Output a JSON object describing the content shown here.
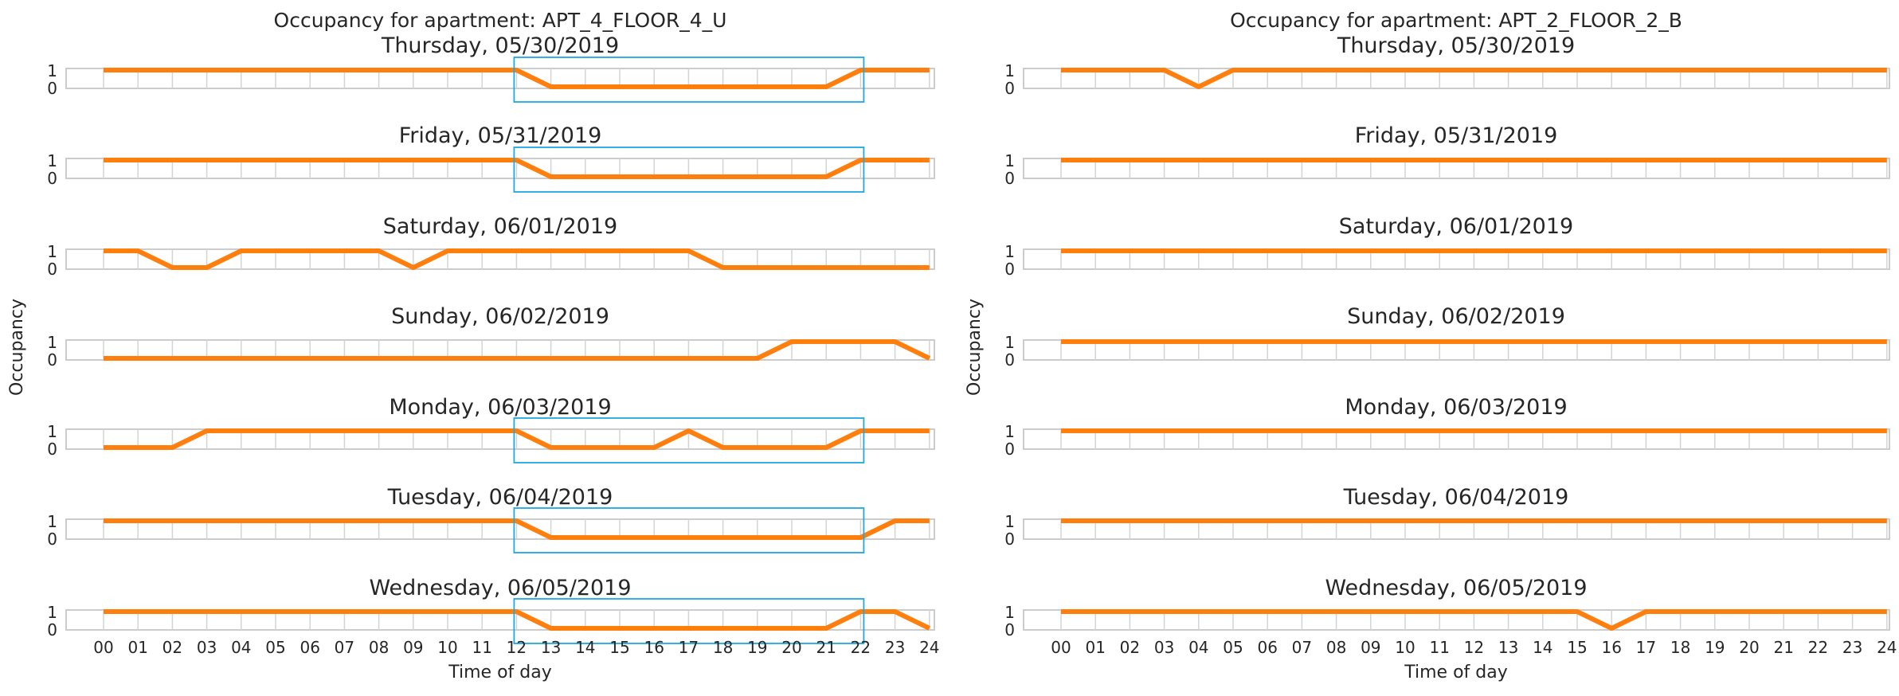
{
  "chart_data": [
    {
      "type": "line",
      "title": "Occupancy for apartment:   APT_4_FLOOR_4_U",
      "xlabel": "Time of day",
      "ylabel": "Occupancy",
      "x_ticks": [
        "00",
        "01",
        "02",
        "03",
        "04",
        "05",
        "06",
        "07",
        "08",
        "09",
        "10",
        "11",
        "12",
        "13",
        "14",
        "15",
        "16",
        "17",
        "18",
        "19",
        "20",
        "21",
        "22",
        "23",
        "24"
      ],
      "y_ticks": [
        "1",
        "0"
      ],
      "ylim": [
        0,
        1
      ],
      "xlim": [
        0,
        24
      ],
      "line_color": "#ff7f0e",
      "highlight_color": "#1fa8e0",
      "days": [
        {
          "label": "Thursday, 05/30/2019",
          "values": [
            1,
            1,
            1,
            1,
            1,
            1,
            1,
            1,
            1,
            1,
            1,
            1,
            1,
            0,
            0,
            0,
            0,
            0,
            0,
            0,
            0,
            0,
            1,
            1,
            1
          ],
          "highlight": [
            12,
            22
          ]
        },
        {
          "label": "Friday, 05/31/2019",
          "values": [
            1,
            1,
            1,
            1,
            1,
            1,
            1,
            1,
            1,
            1,
            1,
            1,
            1,
            0,
            0,
            0,
            0,
            0,
            0,
            0,
            0,
            0,
            1,
            1,
            1
          ],
          "highlight": [
            12,
            22
          ]
        },
        {
          "label": "Saturday, 06/01/2019",
          "values": [
            1,
            1,
            0,
            0,
            1,
            1,
            1,
            1,
            1,
            0,
            1,
            1,
            1,
            1,
            1,
            1,
            1,
            1,
            0,
            0,
            0,
            0,
            0,
            0,
            0
          ],
          "highlight": null
        },
        {
          "label": "Sunday, 06/02/2019",
          "values": [
            0,
            0,
            0,
            0,
            0,
            0,
            0,
            0,
            0,
            0,
            0,
            0,
            0,
            0,
            0,
            0,
            0,
            0,
            0,
            0,
            1,
            1,
            1,
            1,
            0
          ],
          "highlight": null
        },
        {
          "label": "Monday, 06/03/2019",
          "values": [
            0,
            0,
            0,
            1,
            1,
            1,
            1,
            1,
            1,
            1,
            1,
            1,
            1,
            0,
            0,
            0,
            0,
            1,
            0,
            0,
            0,
            0,
            1,
            1,
            1
          ],
          "highlight": [
            12,
            22
          ]
        },
        {
          "label": "Tuesday, 06/04/2019",
          "values": [
            1,
            1,
            1,
            1,
            1,
            1,
            1,
            1,
            1,
            1,
            1,
            1,
            1,
            0,
            0,
            0,
            0,
            0,
            0,
            0,
            0,
            0,
            0,
            1,
            1
          ],
          "highlight": [
            12,
            22
          ]
        },
        {
          "label": "Wednesday, 06/05/2019",
          "values": [
            1,
            1,
            1,
            1,
            1,
            1,
            1,
            1,
            1,
            1,
            1,
            1,
            1,
            0,
            0,
            0,
            0,
            0,
            0,
            0,
            0,
            0,
            1,
            1,
            0
          ],
          "highlight": [
            12,
            22
          ]
        }
      ]
    },
    {
      "type": "line",
      "title": "Occupancy for apartment:   APT_2_FLOOR_2_B",
      "xlabel": "Time of day",
      "ylabel": "Occupancy",
      "x_ticks": [
        "00",
        "01",
        "02",
        "03",
        "04",
        "05",
        "06",
        "07",
        "08",
        "09",
        "10",
        "11",
        "12",
        "13",
        "14",
        "15",
        "16",
        "17",
        "18",
        "19",
        "20",
        "21",
        "22",
        "23",
        "24"
      ],
      "y_ticks": [
        "1",
        "0"
      ],
      "ylim": [
        0,
        1
      ],
      "xlim": [
        0,
        24
      ],
      "line_color": "#ff7f0e",
      "highlight_color": "#1fa8e0",
      "days": [
        {
          "label": "Thursday, 05/30/2019",
          "values": [
            1,
            1,
            1,
            1,
            0,
            1,
            1,
            1,
            1,
            1,
            1,
            1,
            1,
            1,
            1,
            1,
            1,
            1,
            1,
            1,
            1,
            1,
            1,
            1,
            1
          ],
          "highlight": null
        },
        {
          "label": "Friday, 05/31/2019",
          "values": [
            1,
            1,
            1,
            1,
            1,
            1,
            1,
            1,
            1,
            1,
            1,
            1,
            1,
            1,
            1,
            1,
            1,
            1,
            1,
            1,
            1,
            1,
            1,
            1,
            1
          ],
          "highlight": null
        },
        {
          "label": "Saturday, 06/01/2019",
          "values": [
            1,
            1,
            1,
            1,
            1,
            1,
            1,
            1,
            1,
            1,
            1,
            1,
            1,
            1,
            1,
            1,
            1,
            1,
            1,
            1,
            1,
            1,
            1,
            1,
            1
          ],
          "highlight": null
        },
        {
          "label": "Sunday, 06/02/2019",
          "values": [
            1,
            1,
            1,
            1,
            1,
            1,
            1,
            1,
            1,
            1,
            1,
            1,
            1,
            1,
            1,
            1,
            1,
            1,
            1,
            1,
            1,
            1,
            1,
            1,
            1
          ],
          "highlight": null
        },
        {
          "label": "Monday, 06/03/2019",
          "values": [
            1,
            1,
            1,
            1,
            1,
            1,
            1,
            1,
            1,
            1,
            1,
            1,
            1,
            1,
            1,
            1,
            1,
            1,
            1,
            1,
            1,
            1,
            1,
            1,
            1
          ],
          "highlight": null
        },
        {
          "label": "Tuesday, 06/04/2019",
          "values": [
            1,
            1,
            1,
            1,
            1,
            1,
            1,
            1,
            1,
            1,
            1,
            1,
            1,
            1,
            1,
            1,
            1,
            1,
            1,
            1,
            1,
            1,
            1,
            1,
            1
          ],
          "highlight": null
        },
        {
          "label": "Wednesday, 06/05/2019",
          "values": [
            1,
            1,
            1,
            1,
            1,
            1,
            1,
            1,
            1,
            1,
            1,
            1,
            1,
            1,
            1,
            1,
            0,
            1,
            1,
            1,
            1,
            1,
            1,
            1,
            1
          ],
          "highlight": null
        }
      ]
    }
  ]
}
